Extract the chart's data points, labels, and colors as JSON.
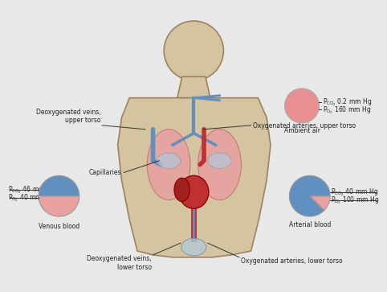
{
  "bg_color": "#e8e8e8",
  "body_fill": "#d4c5a0",
  "body_edge": "#a08060",
  "lung_fill": "#e8a0a0",
  "lung_edge": "#c07070",
  "vein_blue": "#6090c0",
  "artery_red": "#c03030",
  "heart_fill": "#c03030",
  "ambient_circle_color": "#e89090",
  "venous_pink": "#e8a0a0",
  "venous_blue": "#6090c0",
  "arterial_blue": "#6090c0",
  "arterial_pink": "#e8a0a0",
  "text_color": "#222222",
  "label_fontsize": 6.5,
  "sub_fontsize": 5.5,
  "title_fontsize": 7,
  "ambient_label": "Ambient air",
  "venous_label": "Venous blood",
  "arterial_label": "Arterial blood",
  "pco2_ambient": "P₂ 0.2 mm Hg",
  "po2_ambient": "P₂ 160 mm Hg",
  "pco2_venous": "P₂ 46 mm Hg",
  "po2_venous": "P₂ 40 mm Hg",
  "pco2_arterial": "P₂ 40 mm Hg",
  "po2_arterial": "P₂ 100 mm Hg",
  "label_deoxygenated_upper": "Deoxygenated veins,\nupper torso",
  "label_oxygenated_upper": "Oxygenated arteries, upper torso",
  "label_capillaries": "Capillaries",
  "label_deoxygenated_lower": "Deoxygenated veins,\nlower torso",
  "label_oxygenated_lower": "Oxygenated arteries, lower torso"
}
